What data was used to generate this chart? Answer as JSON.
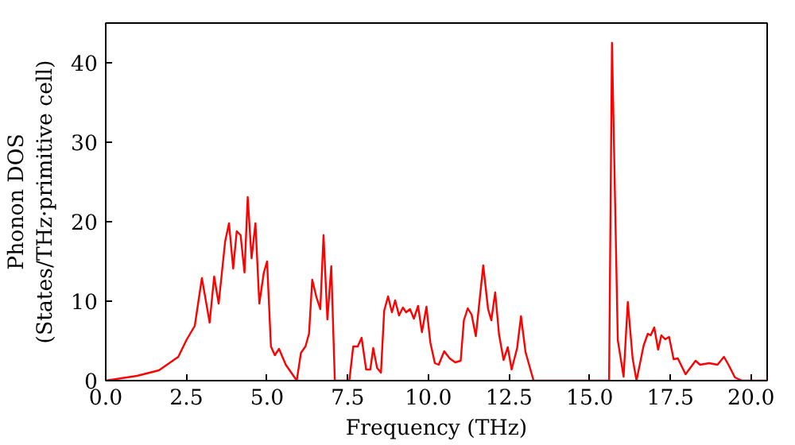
{
  "chart_data": {
    "type": "line",
    "xlabel": "Frequency (THz)",
    "ylabel": "Phonon DOS\n(States/THz·primitive cell)",
    "xlim": [
      0,
      20.5
    ],
    "ylim": [
      0,
      45
    ],
    "xticks": [
      {
        "value": 0,
        "label": "0.0"
      },
      {
        "value": 2.5,
        "label": "2.5"
      },
      {
        "value": 5,
        "label": "5.0"
      },
      {
        "value": 7.5,
        "label": "7.5"
      },
      {
        "value": 10,
        "label": "10.0"
      },
      {
        "value": 12.5,
        "label": "12.5"
      },
      {
        "value": 15,
        "label": "15.0"
      },
      {
        "value": 17.5,
        "label": "17.5"
      },
      {
        "value": 20,
        "label": "20.0"
      }
    ],
    "yticks": [
      0,
      10,
      20,
      30,
      40
    ],
    "grid": false,
    "marker": "none",
    "line_style": "solid",
    "series": [
      {
        "color": "#ff0000",
        "x": [
          0,
          0.97,
          1.65,
          2.25,
          2.5,
          2.76,
          2.98,
          3.22,
          3.36,
          3.5,
          3.7,
          3.82,
          3.95,
          4.06,
          4.18,
          4.3,
          4.4,
          4.52,
          4.64,
          4.76,
          4.9,
          5.0,
          5.12,
          5.24,
          5.37,
          5.58,
          5.92,
          6.05,
          6.19,
          6.3,
          6.4,
          6.53,
          6.65,
          6.75,
          6.87,
          6.99,
          7.1,
          7.55,
          7.67,
          7.81,
          7.93,
          8.07,
          8.2,
          8.29,
          8.41,
          8.53,
          8.63,
          8.75,
          8.87,
          8.97,
          9.09,
          9.21,
          9.31,
          9.43,
          9.55,
          9.68,
          9.8,
          9.94,
          10.06,
          10.2,
          10.32,
          10.49,
          10.66,
          10.83,
          11.0,
          11.1,
          11.22,
          11.34,
          11.47,
          11.7,
          11.85,
          11.95,
          12.07,
          12.19,
          12.33,
          12.46,
          12.58,
          12.75,
          12.87,
          13.01,
          13.26,
          15.6,
          15.69,
          15.87,
          16.05,
          16.18,
          16.33,
          16.45,
          16.67,
          16.8,
          16.89,
          17.0,
          17.12,
          17.22,
          17.34,
          17.46,
          17.6,
          17.73,
          17.97,
          18.28,
          18.42,
          18.7,
          18.96,
          19.16,
          19.3,
          19.5,
          19.72,
          20.5
        ],
        "values": [
          0,
          0.6,
          1.3,
          3.0,
          5.1,
          6.9,
          12.9,
          7.3,
          13.1,
          9.7,
          17.5,
          19.8,
          14.1,
          18.8,
          18.3,
          13.6,
          23.1,
          15.4,
          19.8,
          9.7,
          13.6,
          15.0,
          4.3,
          3.2,
          4.0,
          2.0,
          0,
          3.5,
          4.3,
          5.9,
          12.7,
          10.5,
          9.0,
          18.3,
          7.7,
          14.4,
          0,
          0,
          4.3,
          4.3,
          5.4,
          1.4,
          1.4,
          4.1,
          1.6,
          1.0,
          8.8,
          10.6,
          8.6,
          10.1,
          8.2,
          9.2,
          8.6,
          9.0,
          7.8,
          9.4,
          6.1,
          9.3,
          4.8,
          2.2,
          2.0,
          3.7,
          2.8,
          2.3,
          2.5,
          7.6,
          9.1,
          8.3,
          5.6,
          14.5,
          9.0,
          7.6,
          11.1,
          5.8,
          2.6,
          4.2,
          1.4,
          4.1,
          8.1,
          3.6,
          0,
          0,
          42.5,
          5.1,
          0.5,
          9.9,
          2.8,
          0,
          4.4,
          5.9,
          5.7,
          6.7,
          3.9,
          5.7,
          5.2,
          5.5,
          2.7,
          2.8,
          0.8,
          2.5,
          2.0,
          2.2,
          2.0,
          3.0,
          2.0,
          0.4,
          0,
          0
        ]
      }
    ]
  }
}
